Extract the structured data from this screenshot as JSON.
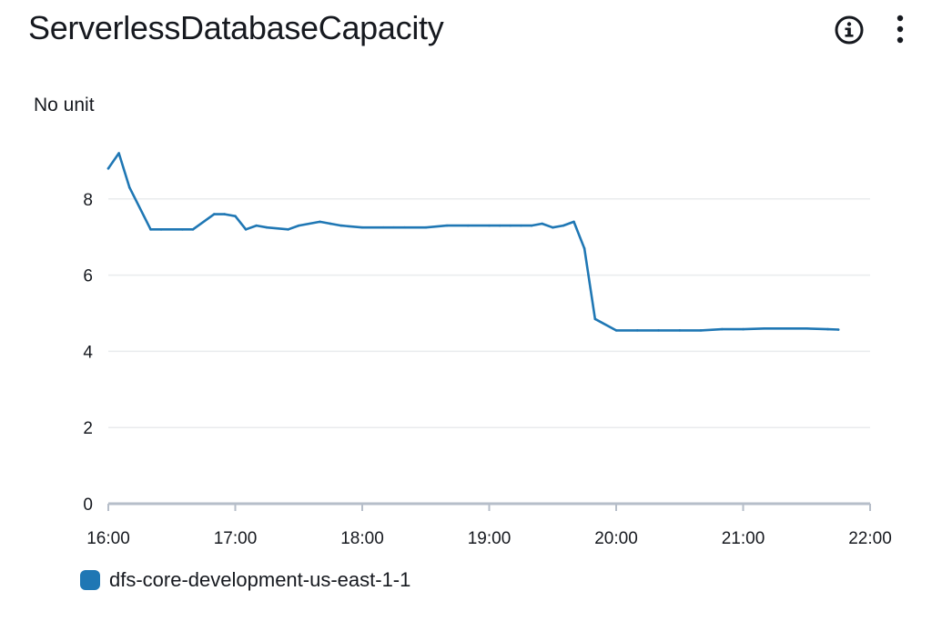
{
  "widget": {
    "title": "ServerlessDatabaseCapacity",
    "info_icon": "info-icon",
    "menu_icon": "vertical-ellipsis-icon"
  },
  "chart_data": {
    "type": "line",
    "title": "ServerlessDatabaseCapacity",
    "ylabel": "No unit",
    "xlabel": "",
    "ylim": [
      0,
      10
    ],
    "yticks": [
      "0",
      "2",
      "4",
      "6",
      "8"
    ],
    "xticks": [
      "16:00",
      "17:00",
      "18:00",
      "19:00",
      "20:00",
      "21:00",
      "22:00"
    ],
    "grid": true,
    "legend_position": "bottom-left",
    "colors": {
      "series": "#1f77b4",
      "grid": "#e9ebed",
      "axis": "#b6bec9"
    },
    "series": [
      {
        "name": "dfs-core-development-us-east-1-1",
        "x": [
          "16:00",
          "16:05",
          "16:10",
          "16:20",
          "16:25",
          "16:35",
          "16:40",
          "16:50",
          "16:55",
          "17:00",
          "17:05",
          "17:10",
          "17:15",
          "17:25",
          "17:30",
          "17:40",
          "17:45",
          "17:50",
          "18:00",
          "18:10",
          "18:15",
          "18:20",
          "18:30",
          "18:40",
          "18:50",
          "19:00",
          "19:05",
          "19:10",
          "19:15",
          "19:20",
          "19:25",
          "19:30",
          "19:35",
          "19:40",
          "19:45",
          "19:50",
          "20:00",
          "20:10",
          "20:20",
          "20:30",
          "20:40",
          "20:50",
          "21:00",
          "21:10",
          "21:20",
          "21:30",
          "21:40",
          "21:45"
        ],
        "values": [
          8.8,
          9.2,
          8.3,
          7.2,
          7.2,
          7.2,
          7.2,
          7.6,
          7.6,
          7.55,
          7.2,
          7.3,
          7.25,
          7.2,
          7.3,
          7.4,
          7.35,
          7.3,
          7.25,
          7.25,
          7.25,
          7.25,
          7.25,
          7.3,
          7.3,
          7.3,
          7.3,
          7.3,
          7.3,
          7.3,
          7.35,
          7.25,
          7.3,
          7.4,
          6.7,
          4.85,
          4.55,
          4.55,
          4.55,
          4.55,
          4.55,
          4.58,
          4.58,
          4.6,
          4.6,
          4.6,
          4.58,
          4.57
        ]
      }
    ]
  }
}
